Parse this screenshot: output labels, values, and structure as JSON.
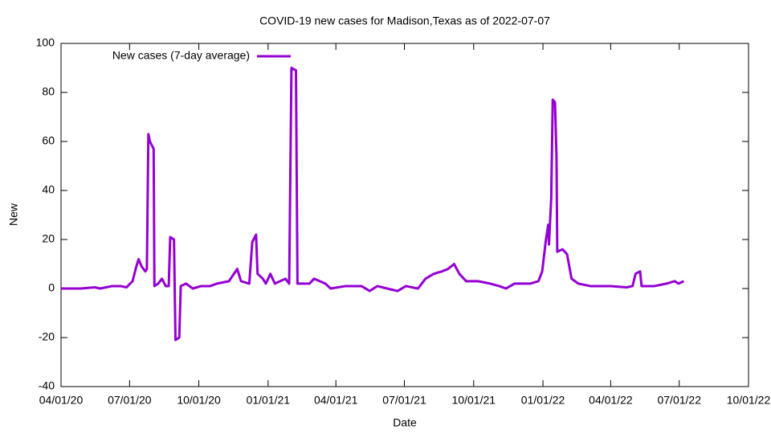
{
  "chart_data": {
    "type": "line",
    "title": "COVID-19 new cases for Madison,Texas as of 2022-07-07",
    "xlabel": "Date",
    "ylabel": "New",
    "legend": "top-left",
    "xlim": [
      "2020-04-01",
      "2022-10-01"
    ],
    "xticks": [
      {
        "value": "2020-04-01",
        "label": "04/01/20"
      },
      {
        "value": "2020-07-01",
        "label": "07/01/20"
      },
      {
        "value": "2020-10-01",
        "label": "10/01/20"
      },
      {
        "value": "2021-01-01",
        "label": "01/01/21"
      },
      {
        "value": "2021-04-01",
        "label": "04/01/21"
      },
      {
        "value": "2021-07-01",
        "label": "07/01/21"
      },
      {
        "value": "2021-10-01",
        "label": "10/01/21"
      },
      {
        "value": "2022-01-01",
        "label": "01/01/22"
      },
      {
        "value": "2022-04-01",
        "label": "04/01/22"
      },
      {
        "value": "2022-07-01",
        "label": "07/01/22"
      },
      {
        "value": "2022-10-01",
        "label": "10/01/22"
      }
    ],
    "ylim": [
      -40,
      100
    ],
    "yticks": [
      -40,
      -20,
      0,
      20,
      40,
      60,
      80,
      100
    ],
    "x": [
      "2020-04-01",
      "2020-04-27",
      "2020-05-16",
      "2020-05-23",
      "2020-06-08",
      "2020-06-19",
      "2020-06-27",
      "2020-07-05",
      "2020-07-10",
      "2020-07-13",
      "2020-07-17",
      "2020-07-22",
      "2020-07-24",
      "2020-07-26",
      "2020-07-28",
      "2020-08-02",
      "2020-08-03",
      "2020-08-08",
      "2020-08-13",
      "2020-08-18",
      "2020-08-22",
      "2020-08-24",
      "2020-08-29",
      "2020-08-31",
      "2020-09-05",
      "2020-09-07",
      "2020-09-14",
      "2020-09-23",
      "2020-10-04",
      "2020-10-16",
      "2020-10-25",
      "2020-11-10",
      "2020-11-21",
      "2020-11-26",
      "2020-12-07",
      "2020-12-11",
      "2020-12-16",
      "2020-12-18",
      "2020-12-25",
      "2020-12-29",
      "2021-01-04",
      "2021-01-10",
      "2021-01-24",
      "2021-01-29",
      "2021-02-01",
      "2021-02-07",
      "2021-02-09",
      "2021-02-25",
      "2021-03-03",
      "2021-03-18",
      "2021-03-25",
      "2021-04-14",
      "2021-05-05",
      "2021-05-16",
      "2021-05-26",
      "2021-06-08",
      "2021-06-22",
      "2021-07-03",
      "2021-07-19",
      "2021-07-29",
      "2021-08-09",
      "2021-08-20",
      "2021-08-28",
      "2021-09-05",
      "2021-09-12",
      "2021-09-21",
      "2021-10-07",
      "2021-10-23",
      "2021-11-04",
      "2021-11-13",
      "2021-11-24",
      "2021-12-15",
      "2021-12-26",
      "2021-12-31",
      "2022-01-05",
      "2022-01-08",
      "2022-01-09",
      "2022-01-12",
      "2022-01-14",
      "2022-01-17",
      "2022-01-19",
      "2022-01-20",
      "2022-01-27",
      "2022-02-02",
      "2022-02-08",
      "2022-02-17",
      "2022-03-05",
      "2022-04-01",
      "2022-04-22",
      "2022-04-30",
      "2022-05-04",
      "2022-05-10",
      "2022-05-12",
      "2022-05-29",
      "2022-06-14",
      "2022-06-25",
      "2022-06-30",
      "2022-07-07"
    ],
    "series": [
      {
        "name": "New cases (7-day average)",
        "color": "#9400d3",
        "values": [
          0,
          0,
          0.5,
          0,
          1,
          1,
          0.5,
          3,
          9,
          12,
          9,
          7,
          8,
          63,
          60,
          57,
          1,
          2,
          4,
          1,
          1,
          21,
          20,
          -21,
          -20,
          1,
          2,
          0,
          1,
          1,
          2,
          3,
          8,
          3,
          2,
          19,
          22,
          6,
          4,
          2,
          6,
          2,
          4,
          2,
          90,
          89,
          2,
          2,
          4,
          2,
          0,
          1,
          1,
          -1,
          1,
          0,
          -1,
          1,
          0,
          4,
          6,
          7,
          8,
          10,
          6,
          3,
          3,
          2,
          1,
          0,
          2,
          2,
          3,
          7,
          20,
          26,
          18,
          37,
          77,
          76,
          54,
          15,
          16,
          14,
          4,
          2,
          1,
          1,
          0.5,
          1,
          6,
          7,
          1,
          1,
          2,
          3,
          2,
          3
        ]
      }
    ]
  }
}
